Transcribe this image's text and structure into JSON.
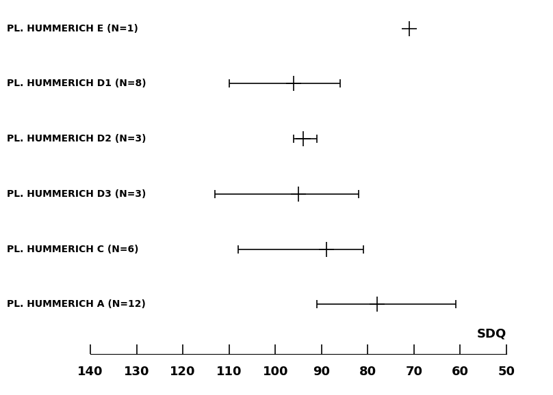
{
  "chart_data": {
    "type": "range",
    "categories": [
      "PL. HUMMERICH E (N=1)",
      "PL. HUMMERICH D1 (N=8)",
      "PL. HUMMERICH D2 (N=3)",
      "PL. HUMMERICH D3 (N=3)",
      "PL. HUMMERICH C (N=6)",
      "PL. HUMMERICH A (N=12)"
    ],
    "values": [
      71,
      96,
      94,
      95,
      89,
      78
    ],
    "low": [
      null,
      110,
      96,
      113,
      108,
      91
    ],
    "high": [
      null,
      86,
      91,
      82,
      81,
      61
    ],
    "xlabel": "SDQ",
    "xlim": [
      140,
      50
    ],
    "xticks": [
      140,
      130,
      120,
      110,
      100,
      90,
      80,
      70,
      60,
      50
    ],
    "color": "#000000",
    "marker": "plus",
    "tick_labels": "x",
    "grid": false
  }
}
